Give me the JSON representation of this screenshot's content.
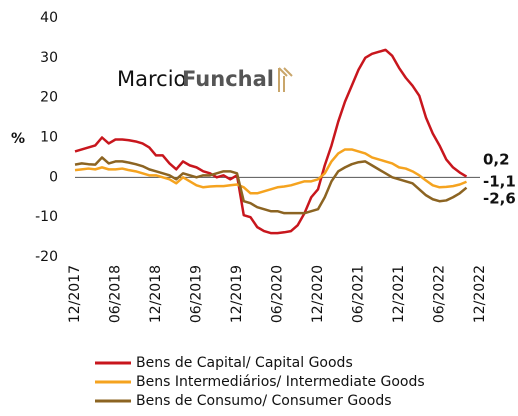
{
  "chart_data": {
    "type": "line",
    "watermark": {
      "first": "Marcio",
      "second": "Funchal"
    },
    "ylabel": "%",
    "categories": [
      "12/2017",
      null,
      null,
      null,
      null,
      null,
      "06/2018",
      null,
      null,
      null,
      null,
      null,
      "12/2018",
      null,
      null,
      null,
      null,
      null,
      "06/2019",
      null,
      null,
      null,
      null,
      null,
      "12/2019",
      null,
      null,
      null,
      null,
      null,
      "06/2020",
      null,
      null,
      null,
      null,
      null,
      "12/2020",
      null,
      null,
      null,
      null,
      null,
      "06/2021",
      null,
      null,
      null,
      null,
      null,
      "12/2021",
      null,
      null,
      null,
      null,
      null,
      "06/2022",
      null,
      null,
      null,
      null,
      null,
      "12/2022"
    ],
    "ylim": [
      -20,
      40
    ],
    "yticks": [
      -20,
      -10,
      0,
      10,
      20,
      30,
      40
    ],
    "series": [
      {
        "name": "Bens de Capital/ Capital Goods",
        "color": "#c8161d",
        "values": [
          6.5,
          7,
          7.5,
          8,
          10,
          8.5,
          9.5,
          9.5,
          9.3,
          9,
          8.5,
          7.5,
          5.5,
          5.5,
          3.5,
          2,
          4,
          3,
          2.5,
          1.5,
          1,
          0,
          0.5,
          -0.5,
          0.5,
          -9.5,
          -10,
          -12.5,
          -13.5,
          -14,
          -14,
          -13.8,
          -13.5,
          -12,
          -9,
          -5,
          -3,
          3,
          8,
          14,
          19,
          23,
          27,
          30,
          31,
          31.5,
          32,
          30.5,
          27.5,
          25,
          23,
          20.5,
          15,
          11,
          8,
          4.5,
          2.5,
          1.2,
          0.2,
          null,
          null
        ],
        "value_labels": [
          null,
          null,
          null,
          null,
          null,
          null,
          null,
          null,
          null,
          null,
          null,
          null,
          null,
          null,
          null,
          null,
          null,
          null,
          null,
          null,
          null,
          null,
          null,
          null,
          null,
          null,
          null,
          null,
          null,
          null,
          null,
          null,
          null,
          null,
          null,
          null,
          null,
          null,
          null,
          null,
          null,
          null,
          null,
          null,
          null,
          null,
          null,
          null,
          null,
          null,
          null,
          null,
          null,
          null,
          null,
          null,
          null,
          null,
          "0,2",
          null,
          null
        ]
      },
      {
        "name": "Bens Intermediários/ Intermediate Goods",
        "color": "#f5a31f",
        "values": [
          1.8,
          2,
          2.2,
          2,
          2.5,
          2,
          2,
          2.2,
          1.8,
          1.5,
          1,
          0.5,
          0.5,
          0,
          -0.5,
          -1.5,
          0,
          -1,
          -2,
          -2.5,
          -2.3,
          -2.2,
          -2.2,
          -2,
          -1.8,
          -2.5,
          -4,
          -4,
          -3.5,
          -3,
          -2.5,
          -2.3,
          -2,
          -1.5,
          -1,
          -1,
          -0.5,
          1,
          4,
          6,
          7,
          7,
          6.5,
          6,
          5,
          4.5,
          4,
          3.5,
          2.5,
          2.2,
          1.5,
          0.5,
          -0.8,
          -2,
          -2.5,
          -2.4,
          -2.2,
          -1.8,
          -1.1,
          null,
          null
        ],
        "value_labels": [
          null,
          null,
          null,
          null,
          null,
          null,
          null,
          null,
          null,
          null,
          null,
          null,
          null,
          null,
          null,
          null,
          null,
          null,
          null,
          null,
          null,
          null,
          null,
          null,
          null,
          null,
          null,
          null,
          null,
          null,
          null,
          null,
          null,
          null,
          null,
          null,
          null,
          null,
          null,
          null,
          null,
          null,
          null,
          null,
          null,
          null,
          null,
          null,
          null,
          null,
          null,
          null,
          null,
          null,
          null,
          null,
          null,
          null,
          "-1,1",
          null,
          null
        ]
      },
      {
        "name": "Bens de Consumo/ Consumer Goods",
        "color": "#8c6422",
        "values": [
          3.2,
          3.5,
          3.3,
          3.2,
          5,
          3.5,
          4,
          4,
          3.7,
          3.3,
          2.8,
          2,
          1.5,
          1,
          0.5,
          -0.5,
          1,
          0.5,
          0,
          0.5,
          0.5,
          1,
          1.5,
          1.5,
          1,
          -6,
          -6.5,
          -7.5,
          -8,
          -8.5,
          -8.5,
          -9,
          -9,
          -9,
          -9,
          -8.5,
          -8,
          -5,
          -1,
          1.5,
          2.5,
          3.3,
          3.8,
          4,
          3,
          2,
          1,
          0,
          -0.5,
          -1,
          -1.5,
          -3,
          -4.5,
          -5.5,
          -6,
          -5.8,
          -5,
          -4,
          -2.6,
          null,
          null
        ],
        "value_labels": [
          null,
          null,
          null,
          null,
          null,
          null,
          null,
          null,
          null,
          null,
          null,
          null,
          null,
          null,
          null,
          null,
          null,
          null,
          null,
          null,
          null,
          null,
          null,
          null,
          null,
          null,
          null,
          null,
          null,
          null,
          null,
          null,
          null,
          null,
          null,
          null,
          null,
          null,
          null,
          null,
          null,
          null,
          null,
          null,
          null,
          null,
          null,
          null,
          null,
          null,
          null,
          null,
          null,
          null,
          null,
          null,
          null,
          null,
          "-2,6",
          null,
          null
        ]
      }
    ]
  }
}
